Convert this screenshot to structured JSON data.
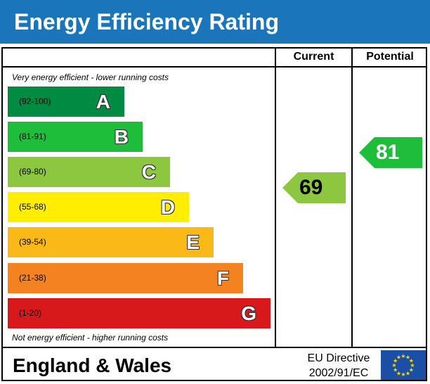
{
  "title": "Energy Efficiency Rating",
  "columns": {
    "current": "Current",
    "potential": "Potential"
  },
  "top_note": "Very energy efficient - lower running costs",
  "bottom_note": "Not energy efficient - higher running costs",
  "footer": {
    "country": "England & Wales",
    "directive_line1": "EU Directive",
    "directive_line2": "2002/91/EC",
    "flag_icon": "eu-flag-icon"
  },
  "chart_data": {
    "type": "bar",
    "categories": [
      "A",
      "B",
      "C",
      "D",
      "E",
      "F",
      "G"
    ],
    "ranges": [
      "(92-100)",
      "(81-91)",
      "(69-80)",
      "(55-68)",
      "(39-54)",
      "(21-38)",
      "(1-20)"
    ],
    "colors": [
      "#008a42",
      "#1ebd3a",
      "#8dc63f",
      "#ffee00",
      "#fbb917",
      "#f58220",
      "#d7191c"
    ],
    "current": {
      "value": 69,
      "band": "C",
      "color": "#8dc63f"
    },
    "potential": {
      "value": 81,
      "band": "B",
      "color": "#1ebd3a"
    }
  }
}
